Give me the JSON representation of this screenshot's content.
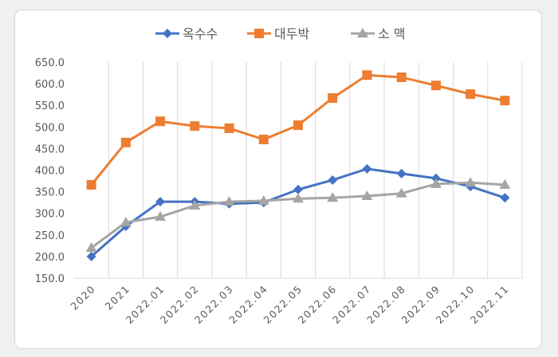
{
  "chart_data": {
    "type": "line",
    "title": "",
    "xlabel": "",
    "ylabel": "",
    "categories": [
      "2020",
      "2021",
      "2022.01",
      "2022.02",
      "2022.03",
      "2022.04",
      "2022.05",
      "2022.06",
      "2022.07",
      "2022.08",
      "2022.09",
      "2022.10",
      "2022.11"
    ],
    "ylim": [
      150,
      650
    ],
    "yticks": [
      "150.0",
      "200.0",
      "250.0",
      "300.0",
      "350.0",
      "400.0",
      "450.0",
      "500.0",
      "550.0",
      "600.0",
      "650.0"
    ],
    "grid": "vertical",
    "legend": "top",
    "series": [
      {
        "name": "옥수수",
        "color": "#4472c4",
        "marker": "diamond",
        "values": [
          200,
          270,
          327,
          327,
          322,
          325,
          355,
          377,
          403,
          392,
          381,
          362,
          336
        ]
      },
      {
        "name": "대두박",
        "color": "#ed7d31",
        "marker": "square",
        "values": [
          366,
          464,
          513,
          502,
          497,
          471,
          504,
          567,
          620,
          615,
          596,
          576,
          561
        ]
      },
      {
        "name": "소 맥",
        "color": "#a5a5a5",
        "marker": "triangle",
        "values": [
          220,
          279,
          292,
          318,
          327,
          329,
          334,
          336,
          340,
          346,
          368,
          371,
          366
        ]
      }
    ]
  }
}
